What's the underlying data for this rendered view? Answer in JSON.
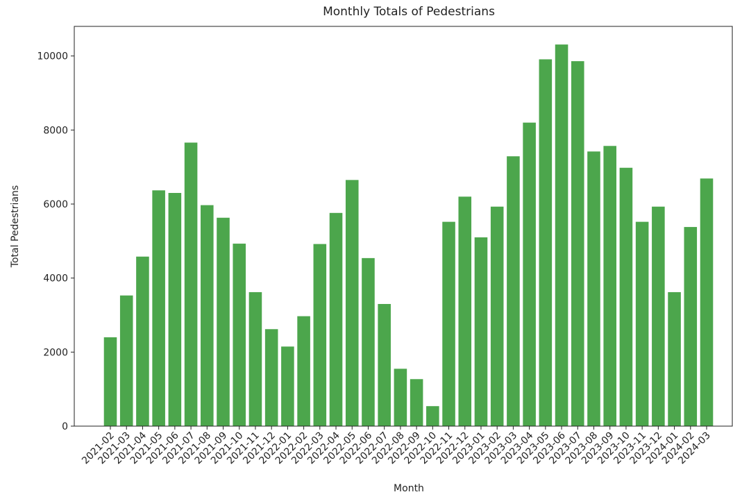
{
  "chart_data": {
    "type": "bar",
    "title": "Monthly Totals of Pedestrians",
    "x_label": "Month",
    "y_label": "Total Pedestrians",
    "categories": [
      "2021-02",
      "2021-03",
      "2021-04",
      "2021-05",
      "2021-06",
      "2021-07",
      "2021-08",
      "2021-09",
      "2021-10",
      "2021-11",
      "2021-12",
      "2022-01",
      "2022-02",
      "2022-03",
      "2022-04",
      "2022-05",
      "2022-06",
      "2022-07",
      "2022-08",
      "2022-09",
      "2022-10",
      "2022-11",
      "2022-12",
      "2023-01",
      "2023-02",
      "2023-03",
      "2023-04",
      "2023-05",
      "2023-06",
      "2023-07",
      "2023-08",
      "2023-09",
      "2023-10",
      "2023-11",
      "2023-12",
      "2024-01",
      "2024-02",
      "2024-03"
    ],
    "values": [
      2400,
      3530,
      4580,
      6370,
      6300,
      7660,
      5970,
      5630,
      4930,
      3620,
      2620,
      2150,
      2970,
      4920,
      5760,
      6650,
      4540,
      3300,
      1550,
      1270,
      540,
      5520,
      6200,
      5100,
      5930,
      7290,
      8200,
      9910,
      10310,
      9860,
      7420,
      7570,
      6980,
      5520,
      5930,
      3620,
      5380,
      6690
    ],
    "color": "green",
    "ylim": [
      0,
      10800
    ],
    "yticks": [
      0,
      2000,
      4000,
      6000,
      8000,
      10000
    ],
    "grid": false
  }
}
